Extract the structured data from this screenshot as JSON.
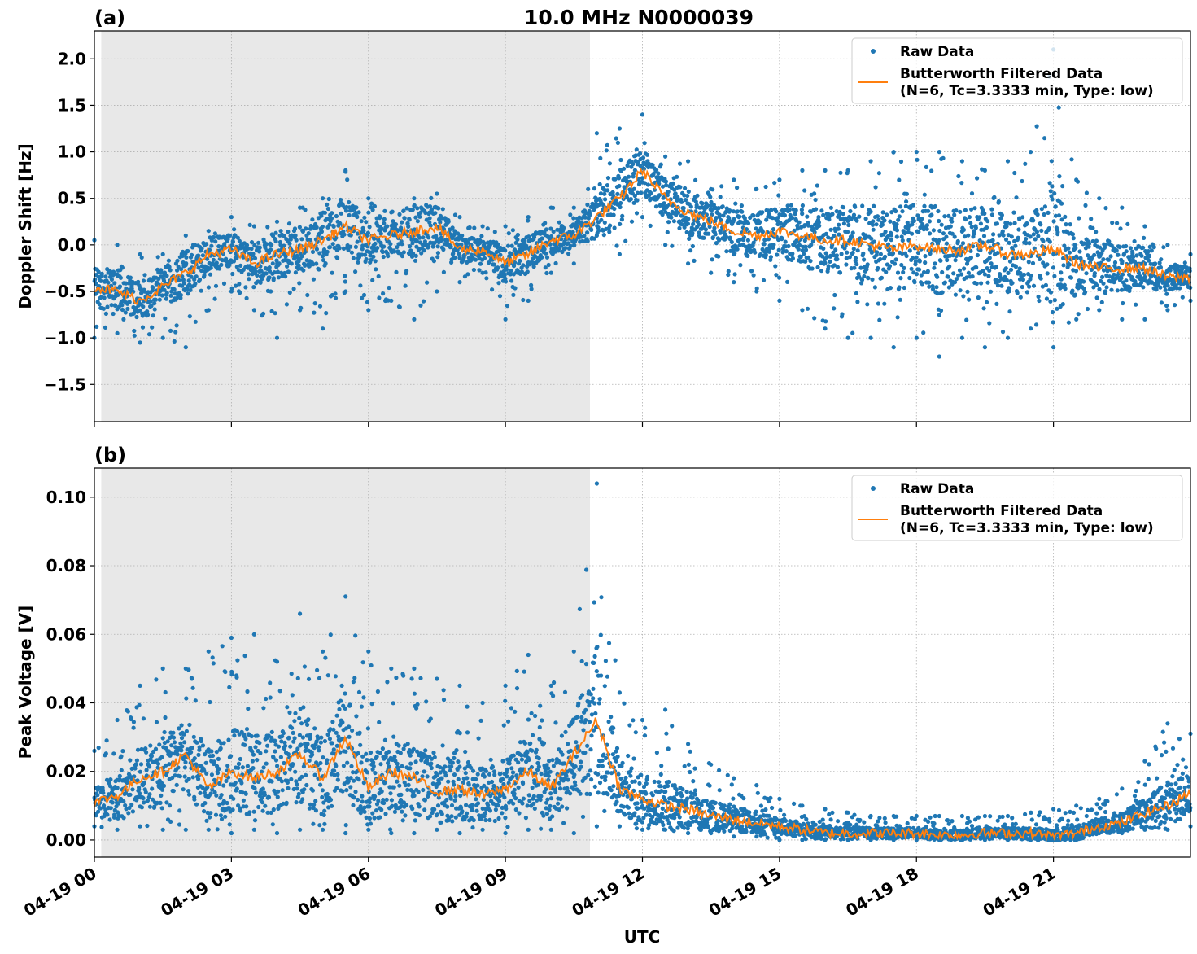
{
  "figure": {
    "title": "10.0 MHz N0000039",
    "xlabel": "UTC",
    "xticks": [
      "04-19 00",
      "04-19 03",
      "04-19 06",
      "04-19 09",
      "04-19 12",
      "04-19 15",
      "04-19 18",
      "04-19 21"
    ],
    "legend": {
      "raw": "Raw Data",
      "filtered_line1": "Butterworth Filtered Data",
      "filtered_line2": "(N=6, Tc=3.3333 min, Type: low)"
    },
    "colors": {
      "raw": "#1f77b4",
      "filtered": "#ff7f0e",
      "shade": "#e8e8e8",
      "grid": "#b0b0b0"
    }
  },
  "chart_data": [
    {
      "type": "scatter",
      "panel_label": "(a)",
      "ylabel": "Doppler Shift [Hz]",
      "xlim": [
        0,
        24
      ],
      "ylim": [
        -1.9,
        2.3
      ],
      "yticks": [
        "2.0",
        "1.5",
        "1.0",
        "0.5",
        "0.0",
        "−0.5",
        "−1.0",
        "−1.5"
      ],
      "ytick_values": [
        2.0,
        1.5,
        1.0,
        0.5,
        0.0,
        -0.5,
        -1.0,
        -1.5
      ],
      "shaded_x_range": [
        0.15,
        10.85
      ],
      "series": [
        {
          "name": "Raw Data",
          "x": [
            0.0,
            0.5,
            1.0,
            1.5,
            2.0,
            2.5,
            3.0,
            3.5,
            4.0,
            4.5,
            5.0,
            5.5,
            6.0,
            6.5,
            7.0,
            7.5,
            8.0,
            8.5,
            9.0,
            9.5,
            10.0,
            10.5,
            11.0,
            11.5,
            12.0,
            12.5,
            13.0,
            13.5,
            14.0,
            14.5,
            15.0,
            15.5,
            16.0,
            16.5,
            17.0,
            17.5,
            18.0,
            18.5,
            19.0,
            19.5,
            20.0,
            20.5,
            21.0,
            21.5,
            22.0,
            22.5,
            23.0,
            23.5,
            24.0
          ],
          "y_min": [
            -1.0,
            -0.95,
            -1.05,
            -1.0,
            -1.1,
            -0.7,
            -0.5,
            -0.7,
            -1.0,
            -0.7,
            -0.9,
            -0.5,
            -0.7,
            -0.6,
            -0.8,
            -0.5,
            -0.4,
            -0.3,
            -0.8,
            -0.6,
            -0.3,
            -0.2,
            0.1,
            -0.1,
            0.3,
            0.0,
            -0.2,
            -0.3,
            -0.4,
            -0.5,
            -0.6,
            -0.7,
            -0.9,
            -1.0,
            -1.0,
            -1.1,
            -1.0,
            -1.2,
            -1.0,
            -1.1,
            -1.0,
            -0.9,
            -1.1,
            -0.8,
            -0.7,
            -0.8,
            -0.8,
            -0.7,
            -0.6
          ],
          "y_max": [
            0.05,
            0.0,
            -0.1,
            -0.1,
            0.1,
            0.15,
            0.3,
            0.2,
            0.25,
            0.4,
            0.5,
            0.8,
            0.5,
            0.35,
            0.5,
            0.55,
            0.3,
            0.2,
            0.2,
            0.3,
            0.4,
            0.4,
            1.2,
            1.25,
            1.4,
            0.95,
            0.9,
            0.6,
            0.7,
            0.6,
            0.7,
            0.8,
            0.8,
            0.8,
            0.9,
            1.0,
            1.0,
            1.0,
            0.9,
            0.8,
            0.9,
            1.0,
            2.1,
            0.7,
            0.5,
            0.4,
            0.2,
            0.0,
            -0.1
          ]
        },
        {
          "name": "Butterworth Filtered Data (N=6, Tc=3.3333 min, Type: low)",
          "x": [
            0.0,
            0.5,
            1.0,
            1.5,
            2.0,
            2.5,
            3.0,
            3.5,
            4.0,
            4.5,
            5.0,
            5.5,
            6.0,
            6.5,
            7.0,
            7.5,
            8.0,
            8.5,
            9.0,
            9.5,
            10.0,
            10.5,
            11.0,
            11.5,
            12.0,
            12.5,
            13.0,
            13.5,
            14.0,
            14.5,
            15.0,
            15.5,
            16.0,
            16.5,
            17.0,
            17.5,
            18.0,
            18.5,
            19.0,
            19.5,
            20.0,
            20.5,
            21.0,
            21.5,
            22.0,
            22.5,
            23.0,
            23.5,
            24.0
          ],
          "y": [
            -0.45,
            -0.5,
            -0.6,
            -0.45,
            -0.3,
            -0.1,
            -0.05,
            -0.2,
            -0.1,
            -0.05,
            0.05,
            0.2,
            0.05,
            0.1,
            0.15,
            0.2,
            -0.05,
            -0.05,
            -0.2,
            -0.1,
            0.05,
            0.1,
            0.3,
            0.5,
            0.8,
            0.5,
            0.35,
            0.25,
            0.15,
            0.1,
            0.15,
            0.1,
            0.05,
            0.05,
            0.0,
            -0.05,
            0.0,
            -0.05,
            -0.05,
            0.0,
            -0.1,
            -0.1,
            -0.05,
            -0.2,
            -0.25,
            -0.25,
            -0.25,
            -0.35,
            -0.35
          ]
        }
      ]
    },
    {
      "type": "scatter",
      "panel_label": "(b)",
      "ylabel": "Peak Voltage [V]",
      "xlim": [
        0,
        24
      ],
      "ylim": [
        -0.005,
        0.1085
      ],
      "yticks": [
        "0.10",
        "0.08",
        "0.06",
        "0.04",
        "0.02",
        "0.00"
      ],
      "ytick_values": [
        0.1,
        0.08,
        0.06,
        0.04,
        0.02,
        0.0
      ],
      "shaded_x_range": [
        0.15,
        10.85
      ],
      "series": [
        {
          "name": "Raw Data",
          "x": [
            0.0,
            0.5,
            1.0,
            1.5,
            2.0,
            2.5,
            3.0,
            3.5,
            4.0,
            4.5,
            5.0,
            5.5,
            6.0,
            6.5,
            7.0,
            7.5,
            8.0,
            8.5,
            9.0,
            9.5,
            10.0,
            10.5,
            11.0,
            11.5,
            12.0,
            12.5,
            13.0,
            13.5,
            14.0,
            14.5,
            15.0,
            15.5,
            16.0,
            16.5,
            17.0,
            17.5,
            18.0,
            18.5,
            19.0,
            19.5,
            20.0,
            20.5,
            21.0,
            21.5,
            22.0,
            22.5,
            23.0,
            23.5,
            24.0
          ],
          "y_min": [
            0.004,
            0.003,
            0.004,
            0.003,
            0.003,
            0.003,
            0.002,
            0.003,
            0.002,
            0.003,
            0.003,
            0.002,
            0.003,
            0.002,
            0.002,
            0.003,
            0.002,
            0.003,
            0.002,
            0.003,
            0.003,
            0.002,
            0.004,
            0.004,
            0.003,
            0.003,
            0.002,
            0.002,
            0.001,
            0.001,
            0.0,
            0.0,
            0.0,
            0.0,
            0.0,
            0.0,
            0.0,
            0.0,
            0.0,
            0.0,
            0.0,
            0.0,
            0.0,
            0.0,
            0.002,
            0.002,
            0.003,
            0.003,
            0.004
          ],
          "y_max": [
            0.026,
            0.035,
            0.045,
            0.05,
            0.05,
            0.055,
            0.059,
            0.06,
            0.052,
            0.066,
            0.055,
            0.071,
            0.055,
            0.05,
            0.05,
            0.047,
            0.045,
            0.04,
            0.045,
            0.054,
            0.045,
            0.055,
            0.104,
            0.043,
            0.035,
            0.038,
            0.028,
            0.022,
            0.018,
            0.016,
            0.012,
            0.01,
            0.009,
            0.008,
            0.007,
            0.007,
            0.007,
            0.007,
            0.007,
            0.007,
            0.007,
            0.008,
            0.009,
            0.01,
            0.012,
            0.015,
            0.023,
            0.034,
            0.031
          ]
        },
        {
          "name": "Butterworth Filtered Data (N=6, Tc=3.3333 min, Type: low)",
          "x": [
            0.0,
            0.5,
            1.0,
            1.5,
            2.0,
            2.5,
            3.0,
            3.5,
            4.0,
            4.5,
            5.0,
            5.5,
            6.0,
            6.5,
            7.0,
            7.5,
            8.0,
            8.5,
            9.0,
            9.5,
            10.0,
            10.5,
            11.0,
            11.5,
            12.0,
            12.5,
            13.0,
            13.5,
            14.0,
            14.5,
            15.0,
            15.5,
            16.0,
            16.5,
            17.0,
            17.5,
            18.0,
            18.5,
            19.0,
            19.5,
            20.0,
            20.5,
            21.0,
            21.5,
            22.0,
            22.5,
            23.0,
            23.5,
            24.0
          ],
          "y": [
            0.011,
            0.013,
            0.018,
            0.02,
            0.025,
            0.015,
            0.02,
            0.018,
            0.02,
            0.025,
            0.018,
            0.03,
            0.015,
            0.02,
            0.018,
            0.014,
            0.015,
            0.013,
            0.015,
            0.02,
            0.015,
            0.025,
            0.035,
            0.015,
            0.012,
            0.01,
            0.009,
            0.007,
            0.006,
            0.005,
            0.004,
            0.003,
            0.002,
            0.002,
            0.002,
            0.002,
            0.002,
            0.0015,
            0.0015,
            0.002,
            0.002,
            0.002,
            0.001,
            0.002,
            0.004,
            0.005,
            0.008,
            0.01,
            0.014
          ]
        }
      ]
    }
  ]
}
